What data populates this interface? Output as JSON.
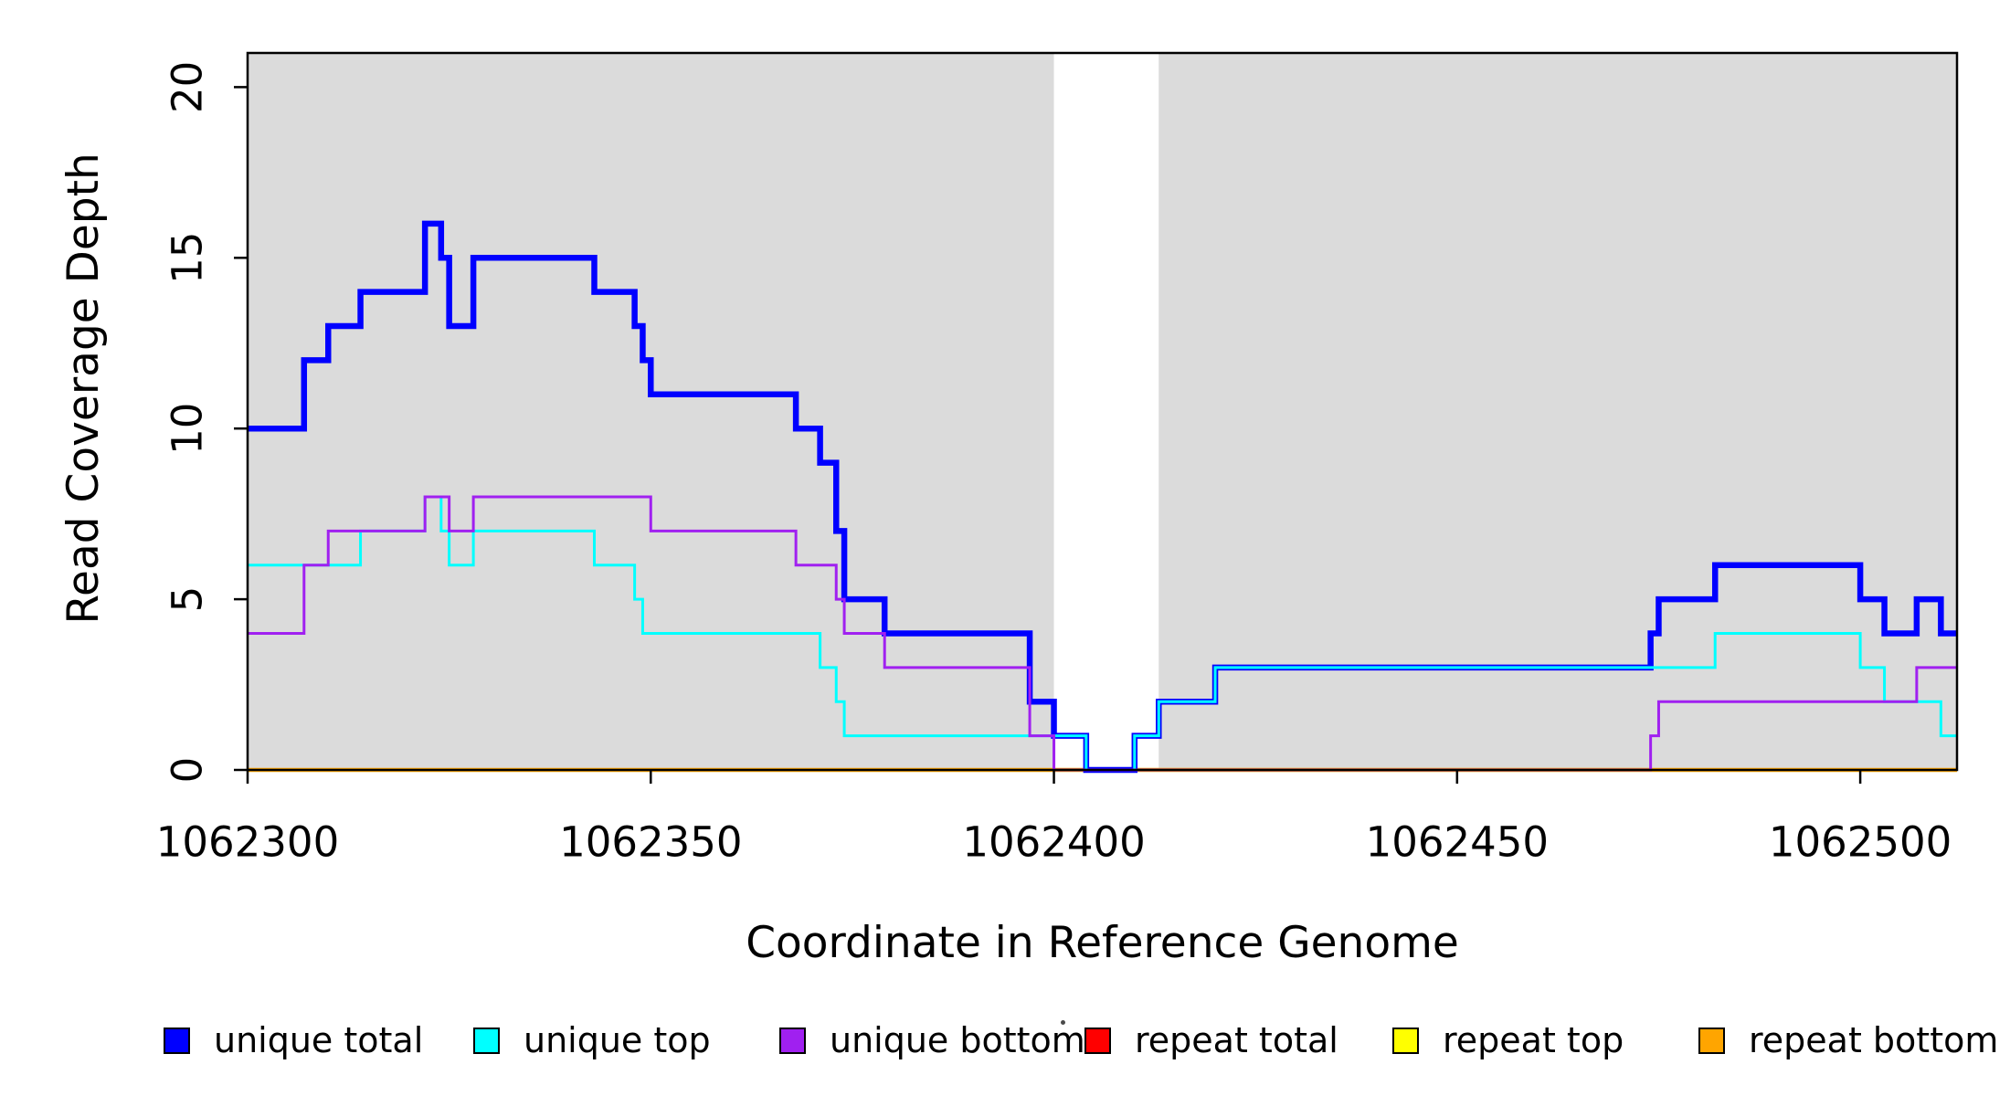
{
  "chart_data": {
    "type": "line",
    "subtype": "step",
    "title": "",
    "xlabel": "Coordinate in Reference Genome",
    "ylabel": "Read Coverage Depth",
    "xlim": [
      1062300,
      1062512
    ],
    "ylim": [
      0,
      21
    ],
    "x_ticks": [
      "1062300",
      "1062350",
      "1062400",
      "1062450",
      "1062500"
    ],
    "x_tick_values": [
      1062300,
      1062350,
      1062400,
      1062450,
      1062500
    ],
    "y_ticks": [
      "0",
      "5",
      "10",
      "15",
      "20"
    ],
    "y_tick_values": [
      0,
      5,
      10,
      15,
      20
    ],
    "grid": false,
    "plot_background_color": "#DBDBDB",
    "gap_band_color": "#FFFFFF",
    "frame_color": "#000000",
    "background_bands": [
      {
        "from": 1062300,
        "to": 1062400
      },
      {
        "from": 1062413,
        "to": 1062512
      }
    ],
    "white_gap": {
      "from": 1062400,
      "to": 1062413
    },
    "series": [
      {
        "name": "repeat total",
        "color": "#FF0000",
        "width": 3,
        "breakpoints": [
          [
            1062300,
            0
          ]
        ]
      },
      {
        "name": "repeat top",
        "color": "#FFFF00",
        "width": 3,
        "breakpoints": [
          [
            1062300,
            0
          ]
        ]
      },
      {
        "name": "repeat bottom",
        "color": "#FFA500",
        "width": 4.5,
        "breakpoints": [
          [
            1062300,
            0
          ]
        ]
      },
      {
        "name": "unique total",
        "color": "#0000FF",
        "width": 6.5,
        "breakpoints": [
          [
            1062300,
            10
          ],
          [
            1062307,
            12
          ],
          [
            1062310,
            13
          ],
          [
            1062314,
            14
          ],
          [
            1062322,
            16
          ],
          [
            1062324,
            15
          ],
          [
            1062325,
            13
          ],
          [
            1062328,
            15
          ],
          [
            1062343,
            14
          ],
          [
            1062348,
            13
          ],
          [
            1062349,
            12
          ],
          [
            1062350,
            11
          ],
          [
            1062368,
            10
          ],
          [
            1062371,
            9
          ],
          [
            1062373,
            7
          ],
          [
            1062374,
            5
          ],
          [
            1062379,
            4
          ],
          [
            1062397,
            2
          ],
          [
            1062400,
            1
          ],
          [
            1062404,
            0
          ],
          [
            1062410,
            1
          ],
          [
            1062413,
            2
          ],
          [
            1062420,
            3
          ],
          [
            1062474,
            4
          ],
          [
            1062475,
            5
          ],
          [
            1062482,
            6
          ],
          [
            1062500,
            5
          ],
          [
            1062503,
            4
          ],
          [
            1062507,
            5
          ],
          [
            1062510,
            4
          ]
        ]
      },
      {
        "name": "unique top",
        "color": "#00FFFF",
        "width": 3,
        "breakpoints": [
          [
            1062300,
            6
          ],
          [
            1062314,
            7
          ],
          [
            1062322,
            8
          ],
          [
            1062324,
            7
          ],
          [
            1062325,
            6
          ],
          [
            1062328,
            7
          ],
          [
            1062343,
            6
          ],
          [
            1062348,
            5
          ],
          [
            1062349,
            4
          ],
          [
            1062371,
            3
          ],
          [
            1062373,
            2
          ],
          [
            1062374,
            1
          ],
          [
            1062404,
            0
          ],
          [
            1062410,
            1
          ],
          [
            1062413,
            2
          ],
          [
            1062420,
            3
          ],
          [
            1062482,
            4
          ],
          [
            1062500,
            3
          ],
          [
            1062503,
            2
          ],
          [
            1062510,
            1
          ]
        ]
      },
      {
        "name": "unique bottom",
        "color": "#A020F0",
        "width": 3,
        "breakpoints": [
          [
            1062300,
            4
          ],
          [
            1062307,
            6
          ],
          [
            1062310,
            7
          ],
          [
            1062322,
            8
          ],
          [
            1062325,
            7
          ],
          [
            1062328,
            8
          ],
          [
            1062350,
            7
          ],
          [
            1062368,
            6
          ],
          [
            1062373,
            5
          ],
          [
            1062374,
            4
          ],
          [
            1062379,
            3
          ],
          [
            1062397,
            1
          ],
          [
            1062400,
            0
          ],
          [
            1062474,
            1
          ],
          [
            1062475,
            2
          ],
          [
            1062507,
            3
          ]
        ]
      }
    ],
    "legend": {
      "position": "bottom",
      "entries": [
        {
          "label": "unique total",
          "color": "#0000FF"
        },
        {
          "label": "unique top",
          "color": "#00FFFF"
        },
        {
          "label": "unique bottom",
          "color": "#A020F0"
        },
        {
          "label": "repeat total",
          "color": "#FF0000"
        },
        {
          "label": "repeat top",
          "color": "#FFFF00"
        },
        {
          "label": "repeat bottom",
          "color": "#FFA500"
        }
      ],
      "stray_dot": true
    }
  }
}
